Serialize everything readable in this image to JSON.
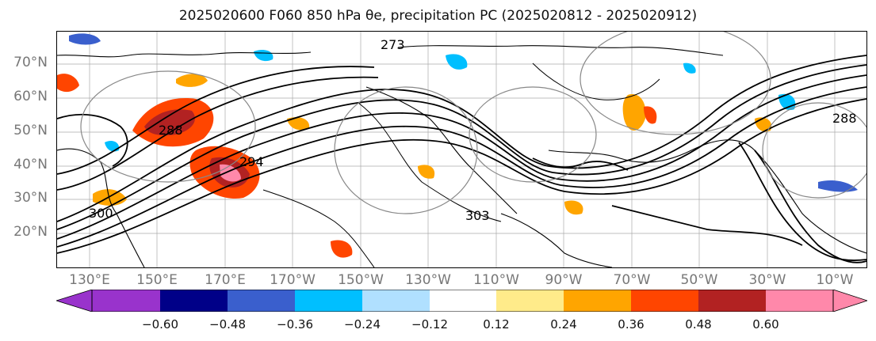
{
  "title": "2025020600 F060 850 hPa θe, precipitation PC (2025020812 - 2025020912)",
  "lat_labels": [
    "70°N",
    "60°N",
    "50°N",
    "40°N",
    "30°N",
    "20°N"
  ],
  "lon_labels": [
    "130°E",
    "150°E",
    "170°E",
    "170°W",
    "150°W",
    "130°W",
    "110°W",
    "90°W",
    "70°W",
    "50°W",
    "30°W",
    "10°W"
  ],
  "contour_labels": [
    "273",
    "288",
    "294",
    "300",
    "303",
    "288"
  ],
  "colorbar": {
    "ticks": [
      "−0.60",
      "−0.48",
      "−0.36",
      "−0.24",
      "−0.12",
      "0.12",
      "0.24",
      "0.36",
      "0.48",
      "0.60"
    ],
    "colors": [
      "#9933cc",
      "#000088",
      "#3a5fcd",
      "#00bfff",
      "#b0e0ff",
      "#ffffff",
      "#ffeb8a",
      "#ffa500",
      "#ff4500",
      "#b22222",
      "#ff88aa"
    ]
  }
}
